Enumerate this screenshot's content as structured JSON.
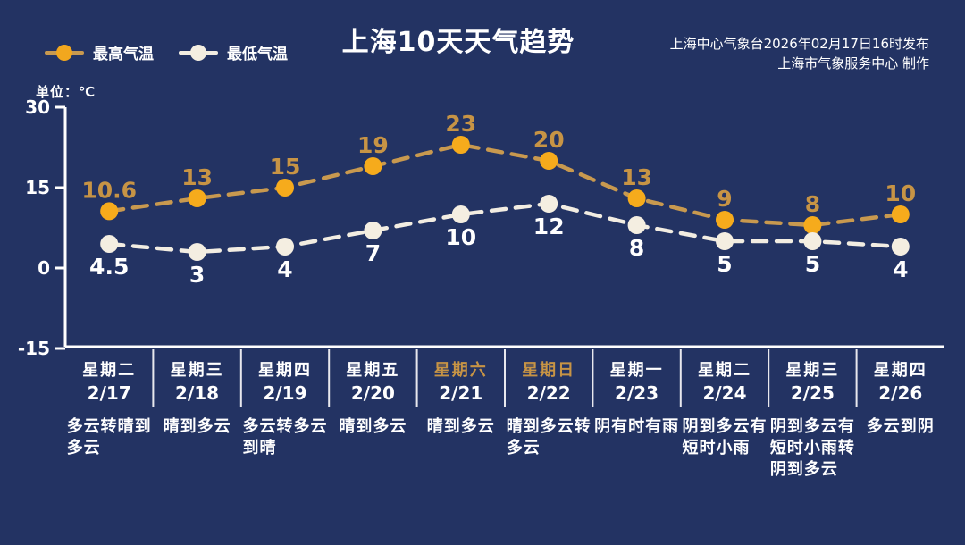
{
  "header": {
    "title": "上海10天天气趋势",
    "publisher_line1": "上海中心气象台2026年02月17日16时发布",
    "publisher_line2": "上海市气象服务中心  制作",
    "unit_label": "单位：℃"
  },
  "legend": [
    {
      "label": "最高气温",
      "marker_color": "#f2a71e",
      "line_color": "#c8994f"
    },
    {
      "label": "最低气温",
      "marker_color": "#f4eee1",
      "line_color": "#f2ede2"
    }
  ],
  "chart_data": {
    "type": "line",
    "title": "上海10天天气趋势",
    "ylabel": "单位：℃",
    "ylim": [
      -15,
      30
    ],
    "yticks": [
      30,
      15,
      0,
      -15
    ],
    "grid": false,
    "legend_position": "top-left",
    "categories": [
      "2/17",
      "2/18",
      "2/19",
      "2/20",
      "2/21",
      "2/22",
      "2/23",
      "2/24",
      "2/25",
      "2/26"
    ],
    "series": [
      {
        "name": "最高气温",
        "values": [
          10.6,
          13,
          15,
          19,
          23,
          20,
          13,
          9,
          8,
          10
        ],
        "marker_color": "#f6ab1c",
        "line_color": "#c8994f",
        "label_color": "#c79445",
        "label_position": "above"
      },
      {
        "name": "最低气温",
        "values": [
          4.5,
          3,
          4,
          7,
          10,
          12,
          8,
          5,
          5,
          4
        ],
        "marker_color": "#f4eee1",
        "line_color": "#f2ede2",
        "label_color": "#ffffff",
        "label_position": "below"
      }
    ]
  },
  "columns": [
    {
      "day": "星期二",
      "date": "2/17",
      "weather": "多云转晴到\n多云",
      "highlight": false
    },
    {
      "day": "星期三",
      "date": "2/18",
      "weather": "晴到多云",
      "highlight": false
    },
    {
      "day": "星期四",
      "date": "2/19",
      "weather": "多云转多云\n到晴",
      "highlight": false
    },
    {
      "day": "星期五",
      "date": "2/20",
      "weather": "晴到多云",
      "highlight": false
    },
    {
      "day": "星期六",
      "date": "2/21",
      "weather": "晴到多云",
      "highlight": true
    },
    {
      "day": "星期日",
      "date": "2/22",
      "weather": "晴到多云转\n多云",
      "highlight": true
    },
    {
      "day": "星期一",
      "date": "2/23",
      "weather": "阴有时有雨",
      "highlight": false
    },
    {
      "day": "星期二",
      "date": "2/24",
      "weather": "阴到多云有\n短时小雨",
      "highlight": false
    },
    {
      "day": "星期三",
      "date": "2/25",
      "weather": "阴到多云有\n短时小雨转\n阴到多云",
      "highlight": false
    },
    {
      "day": "星期四",
      "date": "2/26",
      "weather": "多云到阴",
      "highlight": false
    }
  ],
  "colors": {
    "background": "#233363",
    "axis": "#ffffff",
    "divider": "#e8e8ee",
    "day_highlight": "#c79445",
    "text": "#ffffff"
  }
}
